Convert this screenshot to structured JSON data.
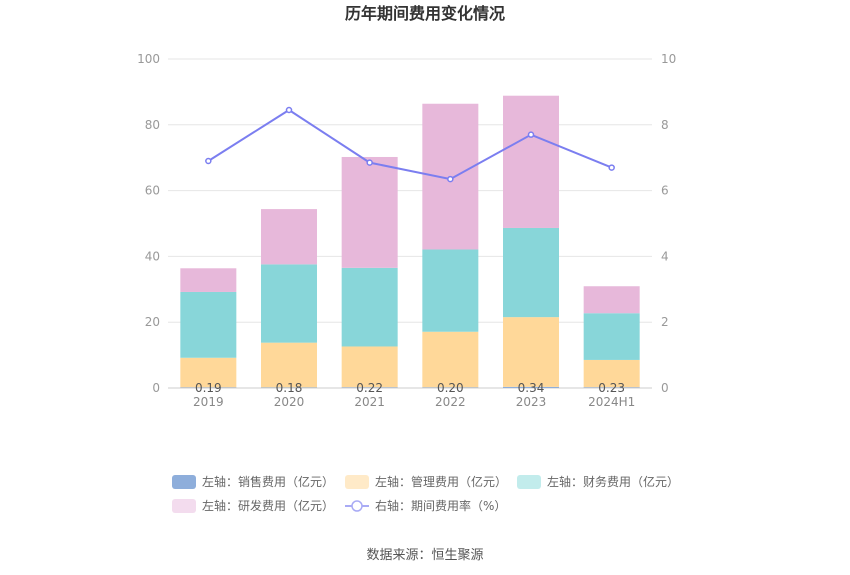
{
  "chart_data": {
    "type": "bar",
    "title": "历年期间费用变化情况",
    "categories": [
      "2019",
      "2020",
      "2021",
      "2022",
      "2023",
      "2024H1"
    ],
    "stacked": true,
    "left_axis": {
      "ylim": [
        0,
        100
      ],
      "ticks": [
        "0",
        "20",
        "40",
        "60",
        "80",
        "100"
      ]
    },
    "right_axis": {
      "ylim": [
        0,
        10
      ],
      "ticks": [
        "0",
        "2",
        "4",
        "6",
        "8",
        "10"
      ]
    },
    "series": [
      {
        "name": "左轴：销售费用（亿元）",
        "axis": "left",
        "kind": "bar",
        "color": "#8eaedb",
        "values": [
          0.19,
          0.18,
          0.22,
          0.2,
          0.34,
          0.23
        ],
        "labels": [
          "0.19",
          "0.18",
          "0.22",
          "0.20",
          "0.34",
          "0.23"
        ]
      },
      {
        "name": "左轴：管理费用（亿元）",
        "axis": "left",
        "kind": "bar",
        "color": "#ffd899",
        "values": [
          9.0,
          13.6,
          12.4,
          16.9,
          21.2,
          8.3
        ]
      },
      {
        "name": "左轴：财务费用（亿元）",
        "axis": "left",
        "kind": "bar",
        "color": "#88d6d9",
        "values": [
          20.0,
          23.8,
          23.9,
          25.0,
          27.1,
          14.2
        ]
      },
      {
        "name": "左轴：研发费用（亿元）",
        "axis": "left",
        "kind": "bar",
        "color": "#e7b8da",
        "values": [
          7.2,
          16.8,
          33.7,
          44.3,
          40.2,
          8.2
        ]
      },
      {
        "name": "右轴：期间费用率（%）",
        "axis": "right",
        "kind": "line",
        "color": "#7b7ef0",
        "values": [
          6.9,
          8.45,
          6.85,
          6.35,
          7.7,
          6.7
        ]
      }
    ],
    "legend_placement": "bottom",
    "grid": true
  },
  "legend": {
    "items": [
      {
        "label": "左轴：销售费用（亿元）",
        "color": "#8eaedb",
        "kind": "bar"
      },
      {
        "label": "左轴：管理费用（亿元）",
        "color": "#ffeac8",
        "kind": "bar"
      },
      {
        "label": "左轴：财务费用（亿元）",
        "color": "#c2ecec",
        "kind": "bar"
      },
      {
        "label": "左轴：研发费用（亿元）",
        "color": "#f3dcee",
        "kind": "bar"
      },
      {
        "label": "右轴：期间费用率（%）",
        "color": "#a9abf5",
        "kind": "line"
      }
    ]
  },
  "source": "数据来源：恒生聚源"
}
